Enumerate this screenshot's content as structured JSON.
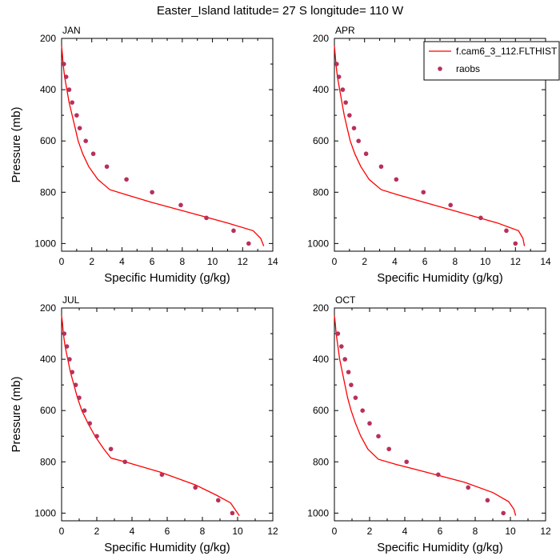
{
  "title": "Easter_Island  latitude= 27 S longitude= 110 W",
  "colors": {
    "model": "#ff0000",
    "obs": "#b8305a",
    "axis": "#000000"
  },
  "legend": {
    "model_label": "f.cam6_3_112.FLTHIST",
    "obs_label": "raobs"
  },
  "chart_data": [
    {
      "type": "line",
      "panel": "JAN",
      "xlabel": "Specific Humidity (g/kg)",
      "ylabel": "Pressure (mb)",
      "xlim": [
        0,
        14
      ],
      "ylim": [
        1030,
        200
      ],
      "xticks": [
        0,
        2,
        4,
        6,
        8,
        10,
        12,
        14
      ],
      "yticks": [
        200,
        400,
        600,
        800,
        1000
      ],
      "series": [
        {
          "name": "f.cam6_3_112.FLTHIST",
          "kind": "line",
          "x": [
            0.0,
            0.05,
            0.1,
            0.2,
            0.35,
            0.5,
            0.7,
            0.9,
            1.1,
            1.4,
            1.8,
            2.4,
            3.2,
            4.3,
            6.0,
            8.5,
            11.0,
            12.7,
            13.2,
            13.4
          ],
          "y": [
            230,
            260,
            300,
            350,
            400,
            450,
            500,
            550,
            600,
            650,
            700,
            750,
            790,
            810,
            840,
            880,
            920,
            950,
            980,
            1010
          ]
        },
        {
          "name": "raobs",
          "kind": "scatter",
          "x": [
            0.15,
            0.3,
            0.5,
            0.7,
            1.0,
            1.2,
            1.6,
            2.1,
            3.0,
            4.3,
            6.0,
            7.9,
            9.6,
            11.4,
            12.4
          ],
          "y": [
            300,
            350,
            400,
            450,
            500,
            550,
            600,
            650,
            700,
            750,
            800,
            850,
            900,
            950,
            1000
          ]
        }
      ]
    },
    {
      "type": "line",
      "panel": "APR",
      "xlabel": "Specific Humidity (g/kg)",
      "ylabel": "",
      "xlim": [
        0,
        14
      ],
      "ylim": [
        1030,
        200
      ],
      "xticks": [
        0,
        2,
        4,
        6,
        8,
        10,
        12,
        14
      ],
      "yticks": [
        200,
        400,
        600,
        800,
        1000
      ],
      "series": [
        {
          "name": "f.cam6_3_112.FLTHIST",
          "kind": "line",
          "x": [
            0.0,
            0.05,
            0.1,
            0.2,
            0.35,
            0.5,
            0.65,
            0.85,
            1.05,
            1.35,
            1.75,
            2.3,
            3.1,
            4.2,
            6.0,
            8.4,
            10.8,
            12.2,
            12.5,
            12.6
          ],
          "y": [
            230,
            260,
            300,
            350,
            400,
            450,
            500,
            550,
            600,
            650,
            700,
            750,
            790,
            810,
            840,
            880,
            920,
            950,
            980,
            1010
          ]
        },
        {
          "name": "raobs",
          "kind": "scatter",
          "x": [
            0.15,
            0.3,
            0.55,
            0.75,
            1.0,
            1.3,
            1.6,
            2.1,
            3.1,
            4.1,
            5.9,
            7.7,
            9.7,
            11.4,
            12.0
          ],
          "y": [
            300,
            350,
            400,
            450,
            500,
            550,
            600,
            650,
            700,
            750,
            800,
            850,
            900,
            950,
            1000
          ]
        }
      ]
    },
    {
      "type": "line",
      "panel": "JUL",
      "xlabel": "Specific Humidity (g/kg)",
      "ylabel": "Pressure (mb)",
      "xlim": [
        0,
        12
      ],
      "ylim": [
        1030,
        200
      ],
      "xticks": [
        0,
        2,
        4,
        6,
        8,
        10,
        12
      ],
      "yticks": [
        200,
        400,
        600,
        800,
        1000
      ],
      "series": [
        {
          "name": "f.cam6_3_112.FLTHIST",
          "kind": "line",
          "x": [
            0.0,
            0.05,
            0.1,
            0.2,
            0.35,
            0.5,
            0.7,
            0.9,
            1.15,
            1.5,
            1.9,
            2.4,
            2.8,
            3.6,
            5.6,
            7.6,
            8.8,
            9.6,
            9.9,
            10.1
          ],
          "y": [
            230,
            260,
            300,
            350,
            400,
            450,
            500,
            550,
            600,
            650,
            700,
            750,
            785,
            800,
            840,
            890,
            930,
            960,
            990,
            1010
          ]
        },
        {
          "name": "raobs",
          "kind": "scatter",
          "x": [
            0.15,
            0.3,
            0.45,
            0.6,
            0.8,
            1.0,
            1.3,
            1.6,
            2.0,
            2.8,
            3.6,
            5.7,
            7.6,
            8.9,
            9.7
          ],
          "y": [
            300,
            350,
            400,
            450,
            500,
            550,
            600,
            650,
            700,
            750,
            800,
            850,
            900,
            950,
            1000
          ]
        }
      ]
    },
    {
      "type": "line",
      "panel": "OCT",
      "xlabel": "Specific Humidity (g/kg)",
      "ylabel": "",
      "xlim": [
        0,
        12
      ],
      "ylim": [
        1030,
        200
      ],
      "xticks": [
        0,
        2,
        4,
        6,
        8,
        10,
        12
      ],
      "yticks": [
        200,
        400,
        600,
        800,
        1000
      ],
      "series": [
        {
          "name": "f.cam6_3_112.FLTHIST",
          "kind": "line",
          "x": [
            0.0,
            0.05,
            0.1,
            0.2,
            0.3,
            0.45,
            0.6,
            0.75,
            0.95,
            1.2,
            1.5,
            1.9,
            2.5,
            3.5,
            5.2,
            7.4,
            9.0,
            9.9,
            10.2,
            10.3
          ],
          "y": [
            230,
            260,
            300,
            350,
            400,
            450,
            500,
            550,
            600,
            650,
            700,
            750,
            790,
            810,
            840,
            880,
            920,
            955,
            985,
            1010
          ]
        },
        {
          "name": "raobs",
          "kind": "scatter",
          "x": [
            0.2,
            0.4,
            0.6,
            0.8,
            0.95,
            1.2,
            1.6,
            2.0,
            2.5,
            3.1,
            4.1,
            5.9,
            7.6,
            8.7,
            9.6
          ],
          "y": [
            300,
            350,
            400,
            450,
            500,
            550,
            600,
            650,
            700,
            750,
            800,
            850,
            900,
            950,
            1000
          ]
        }
      ]
    }
  ]
}
